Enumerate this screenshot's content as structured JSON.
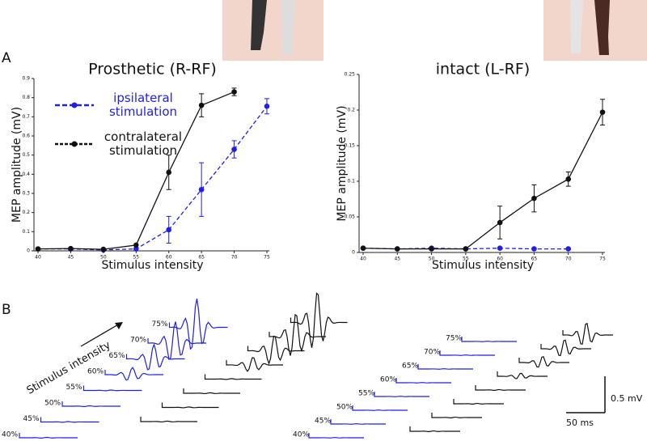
{
  "chart_data": [
    {
      "type": "line",
      "title": "Prosthetic (R-RF)",
      "x_label": "Stimulus intensity",
      "y_label": "MEP amplitude (mV)",
      "x": [
        40,
        45,
        50,
        55,
        60,
        65,
        70,
        75
      ],
      "xlim": [
        40,
        75
      ],
      "xticks": [
        40,
        45,
        50,
        55,
        60,
        65,
        70,
        75
      ],
      "ylim": [
        0,
        0.9
      ],
      "yticks": [
        0,
        0.1,
        0.2,
        0.3,
        0.4,
        0.5,
        0.6,
        0.7,
        0.8,
        0.9
      ],
      "series": [
        {
          "name": "ipsilateral stimulation",
          "color": "#1f1fe6",
          "dashed": true,
          "values": [
            0.01,
            0.01,
            0.005,
            0.01,
            0.11,
            0.32,
            0.53,
            0.755
          ],
          "errors": [
            null,
            null,
            null,
            null,
            0.07,
            0.14,
            0.045,
            0.04
          ]
        },
        {
          "name": "contralateral stimulation",
          "color": "#111111",
          "dashed": false,
          "values": [
            0.01,
            0.012,
            0.008,
            0.03,
            0.41,
            0.76,
            0.83,
            null
          ],
          "errors": [
            null,
            null,
            null,
            null,
            0.09,
            0.06,
            0.02,
            null
          ]
        }
      ]
    },
    {
      "type": "line",
      "title": "intact (L-RF)",
      "x_label": "Stimulus intensity",
      "y_label": "MEP amplitude (mV)",
      "x": [
        40,
        45,
        50,
        55,
        60,
        65,
        70,
        75
      ],
      "xlim": [
        40,
        75
      ],
      "xticks": [
        40,
        45,
        50,
        55,
        60,
        65,
        70,
        75
      ],
      "ylim": [
        0,
        0.25
      ],
      "yticks": [
        0,
        0.05,
        0.1,
        0.15,
        0.2,
        0.25
      ],
      "series": [
        {
          "name": "ipsilateral stimulation",
          "color": "#1f1fe6",
          "dashed": true,
          "values": [
            0.006,
            0.005,
            0.006,
            0.005,
            0.006,
            0.005,
            0.005,
            null
          ],
          "errors": [
            null,
            null,
            null,
            null,
            null,
            null,
            null,
            null
          ]
        },
        {
          "name": "contralateral stimulation",
          "color": "#111111",
          "dashed": false,
          "values": [
            0.006,
            0.005,
            0.005,
            0.005,
            0.042,
            0.076,
            0.103,
            0.197
          ],
          "errors": [
            null,
            null,
            null,
            null,
            0.023,
            0.019,
            0.01,
            0.018
          ]
        }
      ]
    }
  ],
  "panel_labels": [
    "A",
    "B"
  ],
  "traces": {
    "arrow_label": "Stimulus intensity",
    "left_labels": [
      "40%",
      "45%",
      "50%",
      "55%",
      "60%",
      "65%",
      "70%",
      "75%"
    ],
    "right_labels": [
      "40%",
      "45%",
      "50%",
      "55%",
      "60%",
      "65%",
      "70%",
      "75%"
    ],
    "scale_y": "0.5 mV",
    "scale_x": "50 ms"
  }
}
